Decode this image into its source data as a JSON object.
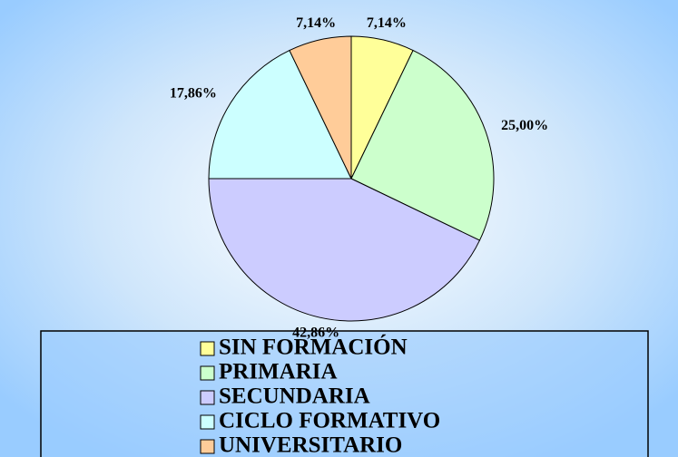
{
  "chart_data": {
    "type": "pie",
    "categories": [
      "SIN FORMACIÓN",
      "PRIMARIA",
      "SECUNDARIA",
      "CICLO FORMATIVO",
      "UNIVERSITARIO"
    ],
    "values": [
      7.14,
      25.0,
      42.86,
      17.86,
      7.14
    ],
    "value_labels": [
      "7,14%",
      "25,00%",
      "42,86%",
      "17,86%",
      "7,14%"
    ],
    "colors": [
      "#ffff99",
      "#ccffcc",
      "#ccccff",
      "#ccffff",
      "#ffcc99"
    ]
  }
}
